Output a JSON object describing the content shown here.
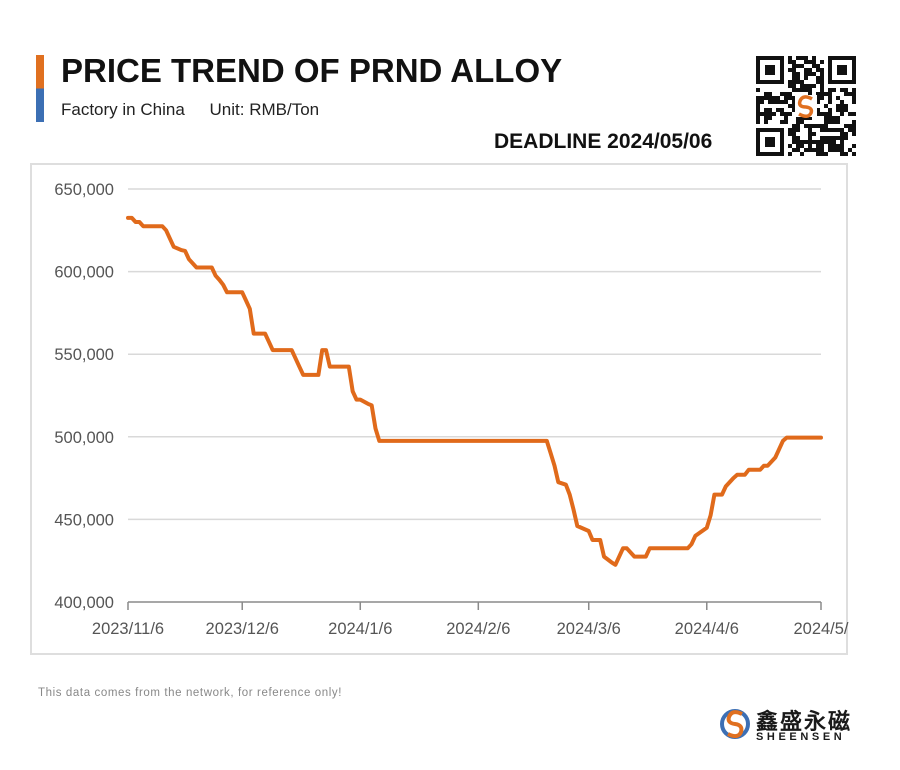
{
  "header": {
    "title": "PRICE TREND OF PRND ALLOY",
    "factory": "Factory in China",
    "unit": "Unit: RMB/Ton",
    "deadline": "DEADLINE 2024/05/06"
  },
  "footer": {
    "note": "This data comes from the network, for reference only!",
    "brand_cn": "鑫盛永磁",
    "brand_en": "SHEENSEN"
  },
  "colors": {
    "line": "#e06a1b",
    "accent_orange": "#e07020",
    "accent_blue": "#3c6fb4",
    "grid": "#d9d9d9"
  },
  "icons": [
    "qr-code-icon",
    "sheensen-logo-icon"
  ],
  "chart_data": {
    "type": "line",
    "title": "PRICE TREND OF PRND ALLOY",
    "xlabel": "",
    "ylabel": "",
    "ylim": [
      400000,
      650000
    ],
    "xlim": [
      "2023-11-06",
      "2024-05-06"
    ],
    "yticks": [
      400000,
      450000,
      500000,
      550000,
      600000,
      650000
    ],
    "ytick_labels": [
      "400,000",
      "450,000",
      "500,000",
      "550,000",
      "600,000",
      "650,000"
    ],
    "xticks": [
      "2023-11-06",
      "2023-12-06",
      "2024-01-06",
      "2024-02-06",
      "2024-03-06",
      "2024-04-06",
      "2024-05-06"
    ],
    "xtick_labels": [
      "2023/11/6",
      "2023/12/6",
      "2024/1/6",
      "2024/2/6",
      "2024/3/6",
      "2024/4/6",
      "2024/5/"
    ],
    "grid": "horizontal",
    "legend": "none",
    "series": [
      {
        "points": [
          [
            "2023-11-06",
            632500
          ],
          [
            "2023-11-07",
            632500
          ],
          [
            "2023-11-08",
            630000
          ],
          [
            "2023-11-09",
            630000
          ],
          [
            "2023-11-10",
            627500
          ],
          [
            "2023-11-13",
            627500
          ],
          [
            "2023-11-15",
            627500
          ],
          [
            "2023-11-16",
            625000
          ],
          [
            "2023-11-17",
            620000
          ],
          [
            "2023-11-18",
            615000
          ],
          [
            "2023-11-20",
            613000
          ],
          [
            "2023-11-21",
            612500
          ],
          [
            "2023-11-22",
            607500
          ],
          [
            "2023-11-24",
            602500
          ],
          [
            "2023-11-26",
            602500
          ],
          [
            "2023-11-28",
            602500
          ],
          [
            "2023-11-29",
            597500
          ],
          [
            "2023-11-30",
            595000
          ],
          [
            "2023-12-01",
            592000
          ],
          [
            "2023-12-02",
            587500
          ],
          [
            "2023-12-04",
            587500
          ],
          [
            "2023-12-06",
            587500
          ],
          [
            "2023-12-07",
            582500
          ],
          [
            "2023-12-08",
            577500
          ],
          [
            "2023-12-09",
            562500
          ],
          [
            "2023-12-12",
            562500
          ],
          [
            "2023-12-13",
            557500
          ],
          [
            "2023-12-14",
            552500
          ],
          [
            "2023-12-17",
            552500
          ],
          [
            "2023-12-19",
            552500
          ],
          [
            "2023-12-21",
            542500
          ],
          [
            "2023-12-22",
            537500
          ],
          [
            "2023-12-24",
            537500
          ],
          [
            "2023-12-26",
            537500
          ],
          [
            "2023-12-27",
            552500
          ],
          [
            "2023-12-28",
            552500
          ],
          [
            "2023-12-29",
            542500
          ],
          [
            "2024-01-01",
            542500
          ],
          [
            "2024-01-03",
            542500
          ],
          [
            "2024-01-04",
            527500
          ],
          [
            "2024-01-05",
            522500
          ],
          [
            "2024-01-06",
            522500
          ],
          [
            "2024-01-08",
            520000
          ],
          [
            "2024-01-09",
            519000
          ],
          [
            "2024-01-10",
            505000
          ],
          [
            "2024-01-11",
            497500
          ],
          [
            "2024-01-20",
            497500
          ],
          [
            "2024-02-06",
            497500
          ],
          [
            "2024-02-20",
            497500
          ],
          [
            "2024-02-24",
            497500
          ],
          [
            "2024-02-25",
            490000
          ],
          [
            "2024-02-26",
            482500
          ],
          [
            "2024-02-27",
            472500
          ],
          [
            "2024-02-29",
            471000
          ],
          [
            "2024-03-01",
            465000
          ],
          [
            "2024-03-02",
            456000
          ],
          [
            "2024-03-03",
            446000
          ],
          [
            "2024-03-06",
            443000
          ],
          [
            "2024-03-07",
            437500
          ],
          [
            "2024-03-09",
            437500
          ],
          [
            "2024-03-10",
            427500
          ],
          [
            "2024-03-12",
            424000
          ],
          [
            "2024-03-13",
            422500
          ],
          [
            "2024-03-15",
            432500
          ],
          [
            "2024-03-16",
            432500
          ],
          [
            "2024-03-18",
            427500
          ],
          [
            "2024-03-21",
            427500
          ],
          [
            "2024-03-22",
            432500
          ],
          [
            "2024-04-01",
            432500
          ],
          [
            "2024-04-02",
            435000
          ],
          [
            "2024-04-03",
            440000
          ],
          [
            "2024-04-06",
            445000
          ],
          [
            "2024-04-07",
            452500
          ],
          [
            "2024-04-08",
            465000
          ],
          [
            "2024-04-10",
            465000
          ],
          [
            "2024-04-11",
            470000
          ],
          [
            "2024-04-13",
            475000
          ],
          [
            "2024-04-14",
            477000
          ],
          [
            "2024-04-16",
            477000
          ],
          [
            "2024-04-17",
            480000
          ],
          [
            "2024-04-20",
            480000
          ],
          [
            "2024-04-21",
            482500
          ],
          [
            "2024-04-22",
            482500
          ],
          [
            "2024-04-24",
            487500
          ],
          [
            "2024-04-26",
            497500
          ],
          [
            "2024-04-27",
            499500
          ],
          [
            "2024-05-01",
            499500
          ],
          [
            "2024-05-06",
            499500
          ]
        ]
      }
    ]
  }
}
